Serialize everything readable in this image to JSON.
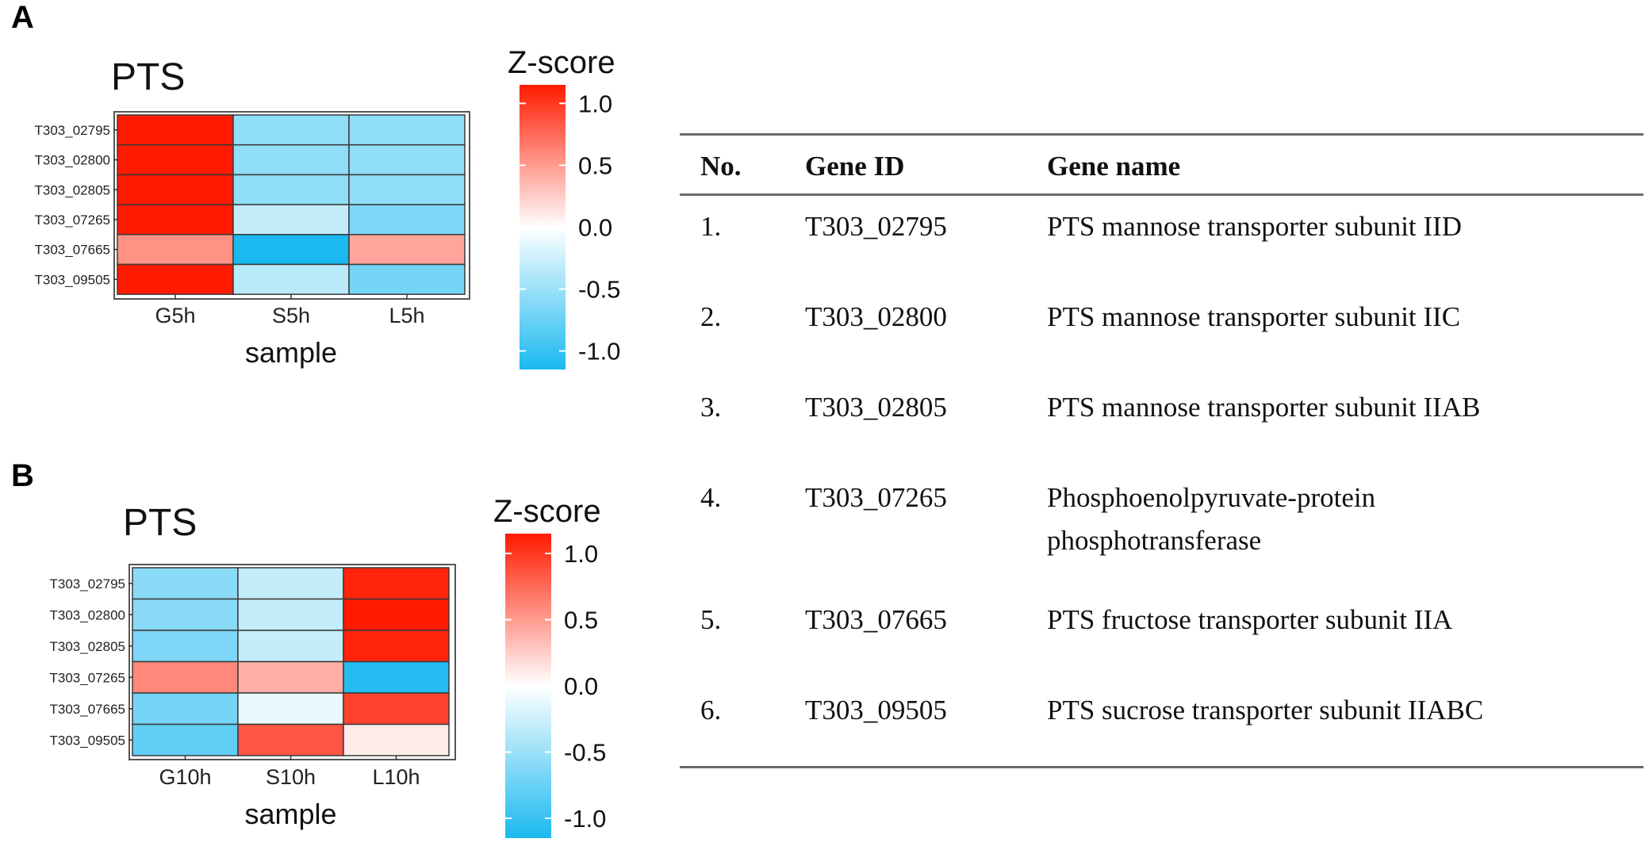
{
  "panels": {
    "a": "A",
    "b": "B"
  },
  "chart_data": [
    {
      "type": "heatmap",
      "panel": "A",
      "title": "PTS",
      "xlabel": "sample",
      "ylabel": "",
      "categories": [
        "G5h",
        "S5h",
        "L5h"
      ],
      "rows": [
        "T303_02795",
        "T303_02800",
        "T303_02805",
        "T303_07265",
        "T303_07665",
        "T303_09505"
      ],
      "values": [
        [
          1.15,
          -0.55,
          -0.55
        ],
        [
          1.15,
          -0.55,
          -0.55
        ],
        [
          1.15,
          -0.55,
          -0.55
        ],
        [
          1.15,
          -0.3,
          -0.65
        ],
        [
          0.55,
          -1.15,
          0.45
        ],
        [
          1.15,
          -0.35,
          -0.7
        ]
      ],
      "legend": {
        "title": "Z-score",
        "range": [
          -1.15,
          1.15
        ],
        "ticks": [
          1.0,
          0.5,
          0.0,
          -0.5,
          -1.0
        ],
        "tick_labels": [
          "1.0",
          "0.5",
          "0.0",
          "-0.5",
          "-1.0"
        ],
        "colors": {
          "low": "#1ab9f0",
          "mid": "#ffffff",
          "high": "#ff1a00"
        }
      }
    },
    {
      "type": "heatmap",
      "panel": "B",
      "title": "PTS",
      "xlabel": "sample",
      "ylabel": "",
      "categories": [
        "G10h",
        "S10h",
        "L10h"
      ],
      "rows": [
        "T303_02795",
        "T303_02800",
        "T303_02805",
        "T303_07265",
        "T303_07665",
        "T303_09505"
      ],
      "values": [
        [
          -0.6,
          -0.3,
          1.1
        ],
        [
          -0.6,
          -0.3,
          1.15
        ],
        [
          -0.65,
          -0.3,
          1.1
        ],
        [
          0.6,
          0.4,
          -1.1
        ],
        [
          -0.7,
          -0.1,
          0.95
        ],
        [
          -0.8,
          0.85,
          0.1
        ]
      ],
      "legend": {
        "title": "Z-score",
        "range": [
          -1.15,
          1.15
        ],
        "ticks": [
          1.0,
          0.5,
          0.0,
          -0.5,
          -1.0
        ],
        "tick_labels": [
          "1.0",
          "0.5",
          "0.0",
          "-0.5",
          "-1.0"
        ],
        "colors": {
          "low": "#1ab9f0",
          "mid": "#ffffff",
          "high": "#ff1a00"
        }
      }
    }
  ],
  "gene_table": {
    "headers": [
      "No.",
      "Gene ID",
      "Gene name"
    ],
    "rows": [
      {
        "no": "1.",
        "id": "T303_02795",
        "name": "PTS mannose  transporter  subunit  IID"
      },
      {
        "no": "2.",
        "id": "T303_02800",
        "name": "PTS mannose  transporter  subunit  IIC"
      },
      {
        "no": "3.",
        "id": "T303_02805",
        "name": "PTS mannose  transporter  subunit  IIAB"
      },
      {
        "no": "4.",
        "id": "T303_07265",
        "name": "Phosphoenolpyruvate-protein",
        "name2": "phosphotransferase"
      },
      {
        "no": "5.",
        "id": "T303_07665",
        "name": "PTS fructose  transporter  subunit  IIA"
      },
      {
        "no": "6.",
        "id": "T303_09505",
        "name": "PTS sucrose  transporter  subunit  IIABC"
      }
    ]
  }
}
